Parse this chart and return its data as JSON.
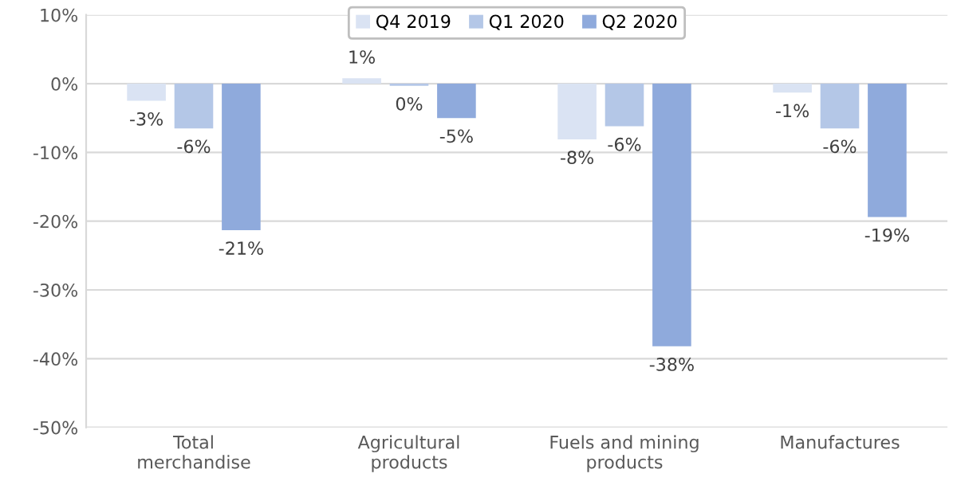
{
  "chart_data": {
    "type": "bar",
    "categories": [
      "Total\nmerchandise",
      "Agricultural\nproducts",
      "Fuels and mining\nproducts",
      "Manufactures"
    ],
    "series": [
      {
        "name": "Q4 2019",
        "color": "#dae3f3",
        "values": [
          -2.5,
          0.8,
          -8.1,
          -1.3
        ],
        "value_labels": [
          "-3%",
          "1%",
          "-8%",
          "-1%"
        ]
      },
      {
        "name": "Q1 2020",
        "color": "#b4c7e7",
        "values": [
          -6.5,
          -0.3,
          -6.2,
          -6.5
        ],
        "value_labels": [
          "-6%",
          "0%",
          "-6%",
          "-6%"
        ]
      },
      {
        "name": "Q2 2020",
        "color": "#8faadc",
        "values": [
          -21.3,
          -5,
          -38.2,
          -19.4
        ],
        "value_labels": [
          "-21%",
          "-5%",
          "-38%",
          "-19%"
        ]
      }
    ],
    "ylim": [
      -50,
      10
    ],
    "yticks": [
      {
        "value": -50,
        "label": "-50%"
      },
      {
        "value": -40,
        "label": "-40%"
      },
      {
        "value": -30,
        "label": "-30%"
      },
      {
        "value": -20,
        "label": "-20%"
      },
      {
        "value": -10,
        "label": "-10%"
      },
      {
        "value": 0,
        "label": "0%"
      },
      {
        "value": 10,
        "label": "10%"
      }
    ],
    "grid": "y",
    "legend": "top"
  }
}
